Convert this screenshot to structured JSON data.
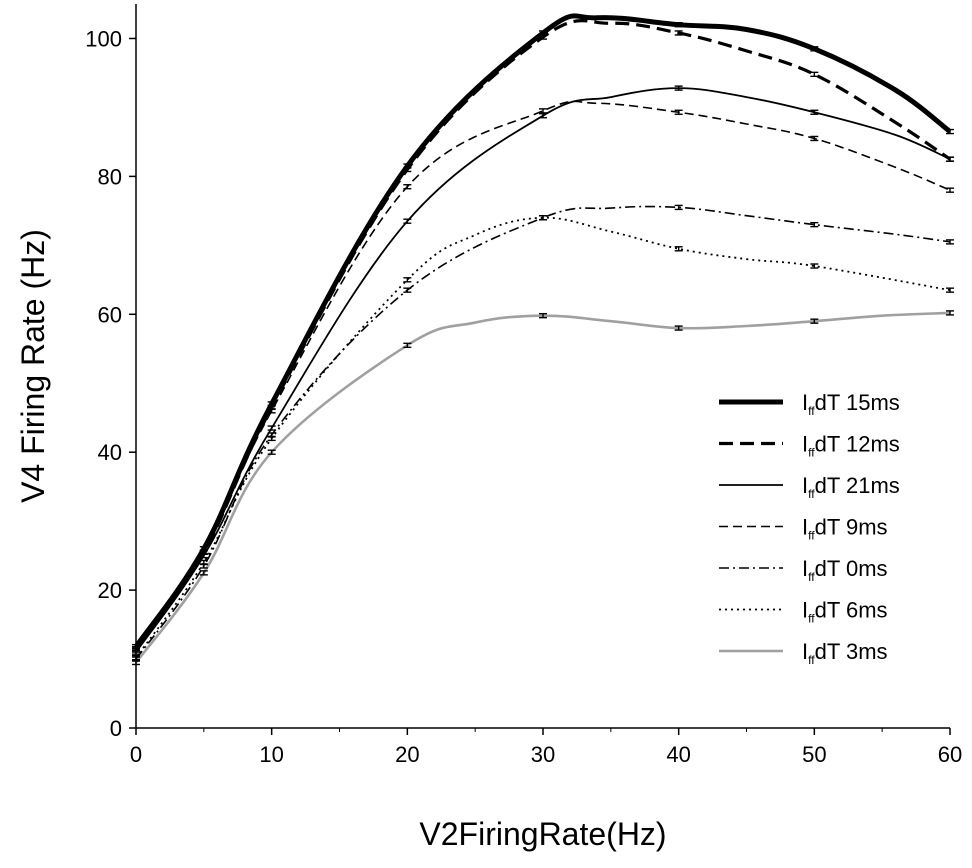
{
  "chart_data": {
    "type": "line",
    "title": "",
    "xlabel": "V2FiringRate(Hz)",
    "ylabel": "V4 Firing Rate (Hz)",
    "xlim": [
      0,
      60
    ],
    "ylim": [
      0,
      105
    ],
    "xticks": [
      "0",
      "10",
      "20",
      "30",
      "40",
      "50",
      "60"
    ],
    "yticks": [
      "0",
      "20",
      "40",
      "60",
      "80",
      "100"
    ],
    "grid": false,
    "legend_position": "right",
    "x": [
      0,
      5,
      10,
      20,
      30,
      40,
      50,
      60
    ],
    "series": [
      {
        "name": "IffdT 15ms",
        "legend_main": "I",
        "legend_sub": "ff",
        "legend_rest": "dT 15ms",
        "color": "#000000",
        "dash": "",
        "width": 5,
        "values": [
          11.8,
          26.0,
          47.0,
          81.5,
          100.8,
          102.0,
          98.5,
          86.5
        ],
        "through": [
          [
            34,
            103.0
          ],
          [
            45,
            101.3
          ],
          [
            56,
            92.5
          ]
        ]
      },
      {
        "name": "IffdT 12ms",
        "legend_main": "I",
        "legend_sub": "ff",
        "legend_rest": "dT 12ms",
        "color": "#000000",
        "dash": "14,7",
        "width": 3.2,
        "values": [
          11.5,
          25.5,
          46.5,
          81.0,
          100.2,
          100.8,
          94.8,
          82.5
        ],
        "through": [
          [
            35,
            102.2
          ],
          [
            45,
            98.2
          ],
          [
            56,
            87.8
          ]
        ]
      },
      {
        "name": "IffdT 21ms",
        "legend_main": "I",
        "legend_sub": "ff",
        "legend_rest": "dT 21ms",
        "color": "#000000",
        "dash": "",
        "width": 1.8,
        "values": [
          11.0,
          25.0,
          43.5,
          73.5,
          88.8,
          92.8,
          89.3,
          82.5
        ],
        "through": [
          [
            35,
            91.5
          ],
          [
            45,
            91.5
          ],
          [
            56,
            86.0
          ]
        ]
      },
      {
        "name": "IffdT 9ms",
        "legend_main": "I",
        "legend_sub": "ff",
        "legend_rest": "dT 9ms",
        "color": "#000000",
        "dash": "9,5",
        "width": 1.6,
        "values": [
          11.3,
          25.5,
          46.0,
          78.5,
          89.5,
          89.3,
          85.5,
          78.0
        ],
        "through": [
          [
            34,
            90.6
          ],
          [
            45,
            87.6
          ],
          [
            56,
            81.3
          ]
        ]
      },
      {
        "name": "IffdT 0ms",
        "legend_main": "I",
        "legend_sub": "ff",
        "legend_rest": "dT 0ms",
        "color": "#000000",
        "dash": "10,4,2,4",
        "width": 1.6,
        "values": [
          10.0,
          23.5,
          42.5,
          63.5,
          74.0,
          75.5,
          73.0,
          70.5
        ],
        "through": [
          [
            35,
            75.4
          ],
          [
            45,
            74.3
          ],
          [
            56,
            71.6
          ]
        ]
      },
      {
        "name": "IffdT 6ms",
        "legend_main": "I",
        "legend_sub": "ff",
        "legend_rest": "dT 6ms",
        "color": "#000000",
        "dash": "2,4",
        "width": 1.8,
        "values": [
          10.2,
          24.0,
          42.0,
          65.0,
          74.0,
          69.5,
          67.0,
          63.5
        ],
        "through": [
          [
            25,
            71.5
          ],
          [
            35,
            72.0
          ],
          [
            45,
            68.0
          ]
        ]
      },
      {
        "name": "IffdT 3ms",
        "legend_main": "I",
        "legend_sub": "ff",
        "legend_rest": "dT 3ms",
        "color": "#a0a0a0",
        "dash": "",
        "width": 2.6,
        "values": [
          9.5,
          22.5,
          40.0,
          55.5,
          59.8,
          58.0,
          59.0,
          60.2
        ],
        "through": [
          [
            25,
            58.8
          ],
          [
            35,
            59.0
          ],
          [
            45,
            58.3
          ],
          [
            55,
            59.8
          ]
        ]
      }
    ]
  }
}
